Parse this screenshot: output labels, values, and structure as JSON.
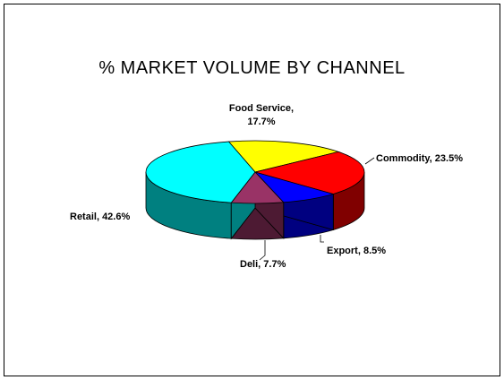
{
  "chart_data": {
    "type": "pie",
    "title": "% MARKET VOLUME BY CHANNEL",
    "slices": [
      {
        "label": "Food Service,",
        "label_line2": "17.7%",
        "value": 17.7,
        "color": "#ffff00",
        "side": "#808000"
      },
      {
        "label": "Commodity, 23.5%",
        "value": 23.5,
        "color": "#ff0000",
        "side": "#800000"
      },
      {
        "label": "Export, 8.5%",
        "value": 8.5,
        "color": "#0000ff",
        "side": "#000080"
      },
      {
        "label": "Deli, 7.7%",
        "value": 7.7,
        "color": "#993366",
        "side": "#4d1a33"
      },
      {
        "label": "Retail, 42.6%",
        "value": 42.6,
        "color": "#00ffff",
        "side": "#008080"
      }
    ]
  }
}
